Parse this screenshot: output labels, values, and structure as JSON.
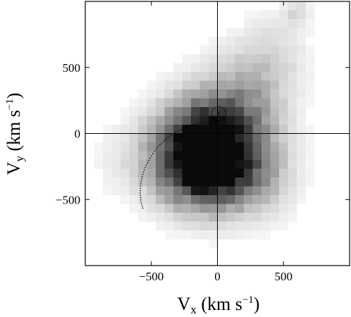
{
  "chart_data": {
    "type": "heatmap",
    "title": "",
    "xlabel": {
      "base": "V",
      "sub": "x",
      "unit": " (km s",
      "sup": "−1",
      "close": ")"
    },
    "ylabel": {
      "base": "V",
      "sub": "y",
      "unit": " (km s",
      "sup": "−1",
      "close": ")"
    },
    "xlim": [
      -1000,
      1000
    ],
    "ylim": [
      -1000,
      1000
    ],
    "xticks": [
      -500,
      0,
      500
    ],
    "yticks": [
      -500,
      0,
      500
    ],
    "xtick_labels": [
      "−500",
      "0",
      "500"
    ],
    "ytick_labels": [
      "−500",
      "0",
      "500"
    ],
    "grid": false,
    "colormap": "greyscale, white = low density, black = high density",
    "density_peak": {
      "vx": -100,
      "vy": -120
    },
    "circle_marker": {
      "vx": 10,
      "vy": 150,
      "radius": 55
    },
    "crosshair": {
      "vx": 0,
      "vy": 0
    },
    "orbit_track": [
      [
        -20,
        90
      ],
      [
        -100,
        85
      ],
      [
        -180,
        70
      ],
      [
        -250,
        40
      ],
      [
        -320,
        10
      ],
      [
        -390,
        -40
      ],
      [
        -450,
        -100
      ],
      [
        -500,
        -170
      ],
      [
        -540,
        -240
      ],
      [
        -565,
        -310
      ],
      [
        -580,
        -380
      ],
      [
        -585,
        -450
      ],
      [
        -578,
        -520
      ],
      [
        -560,
        -580
      ]
    ]
  }
}
